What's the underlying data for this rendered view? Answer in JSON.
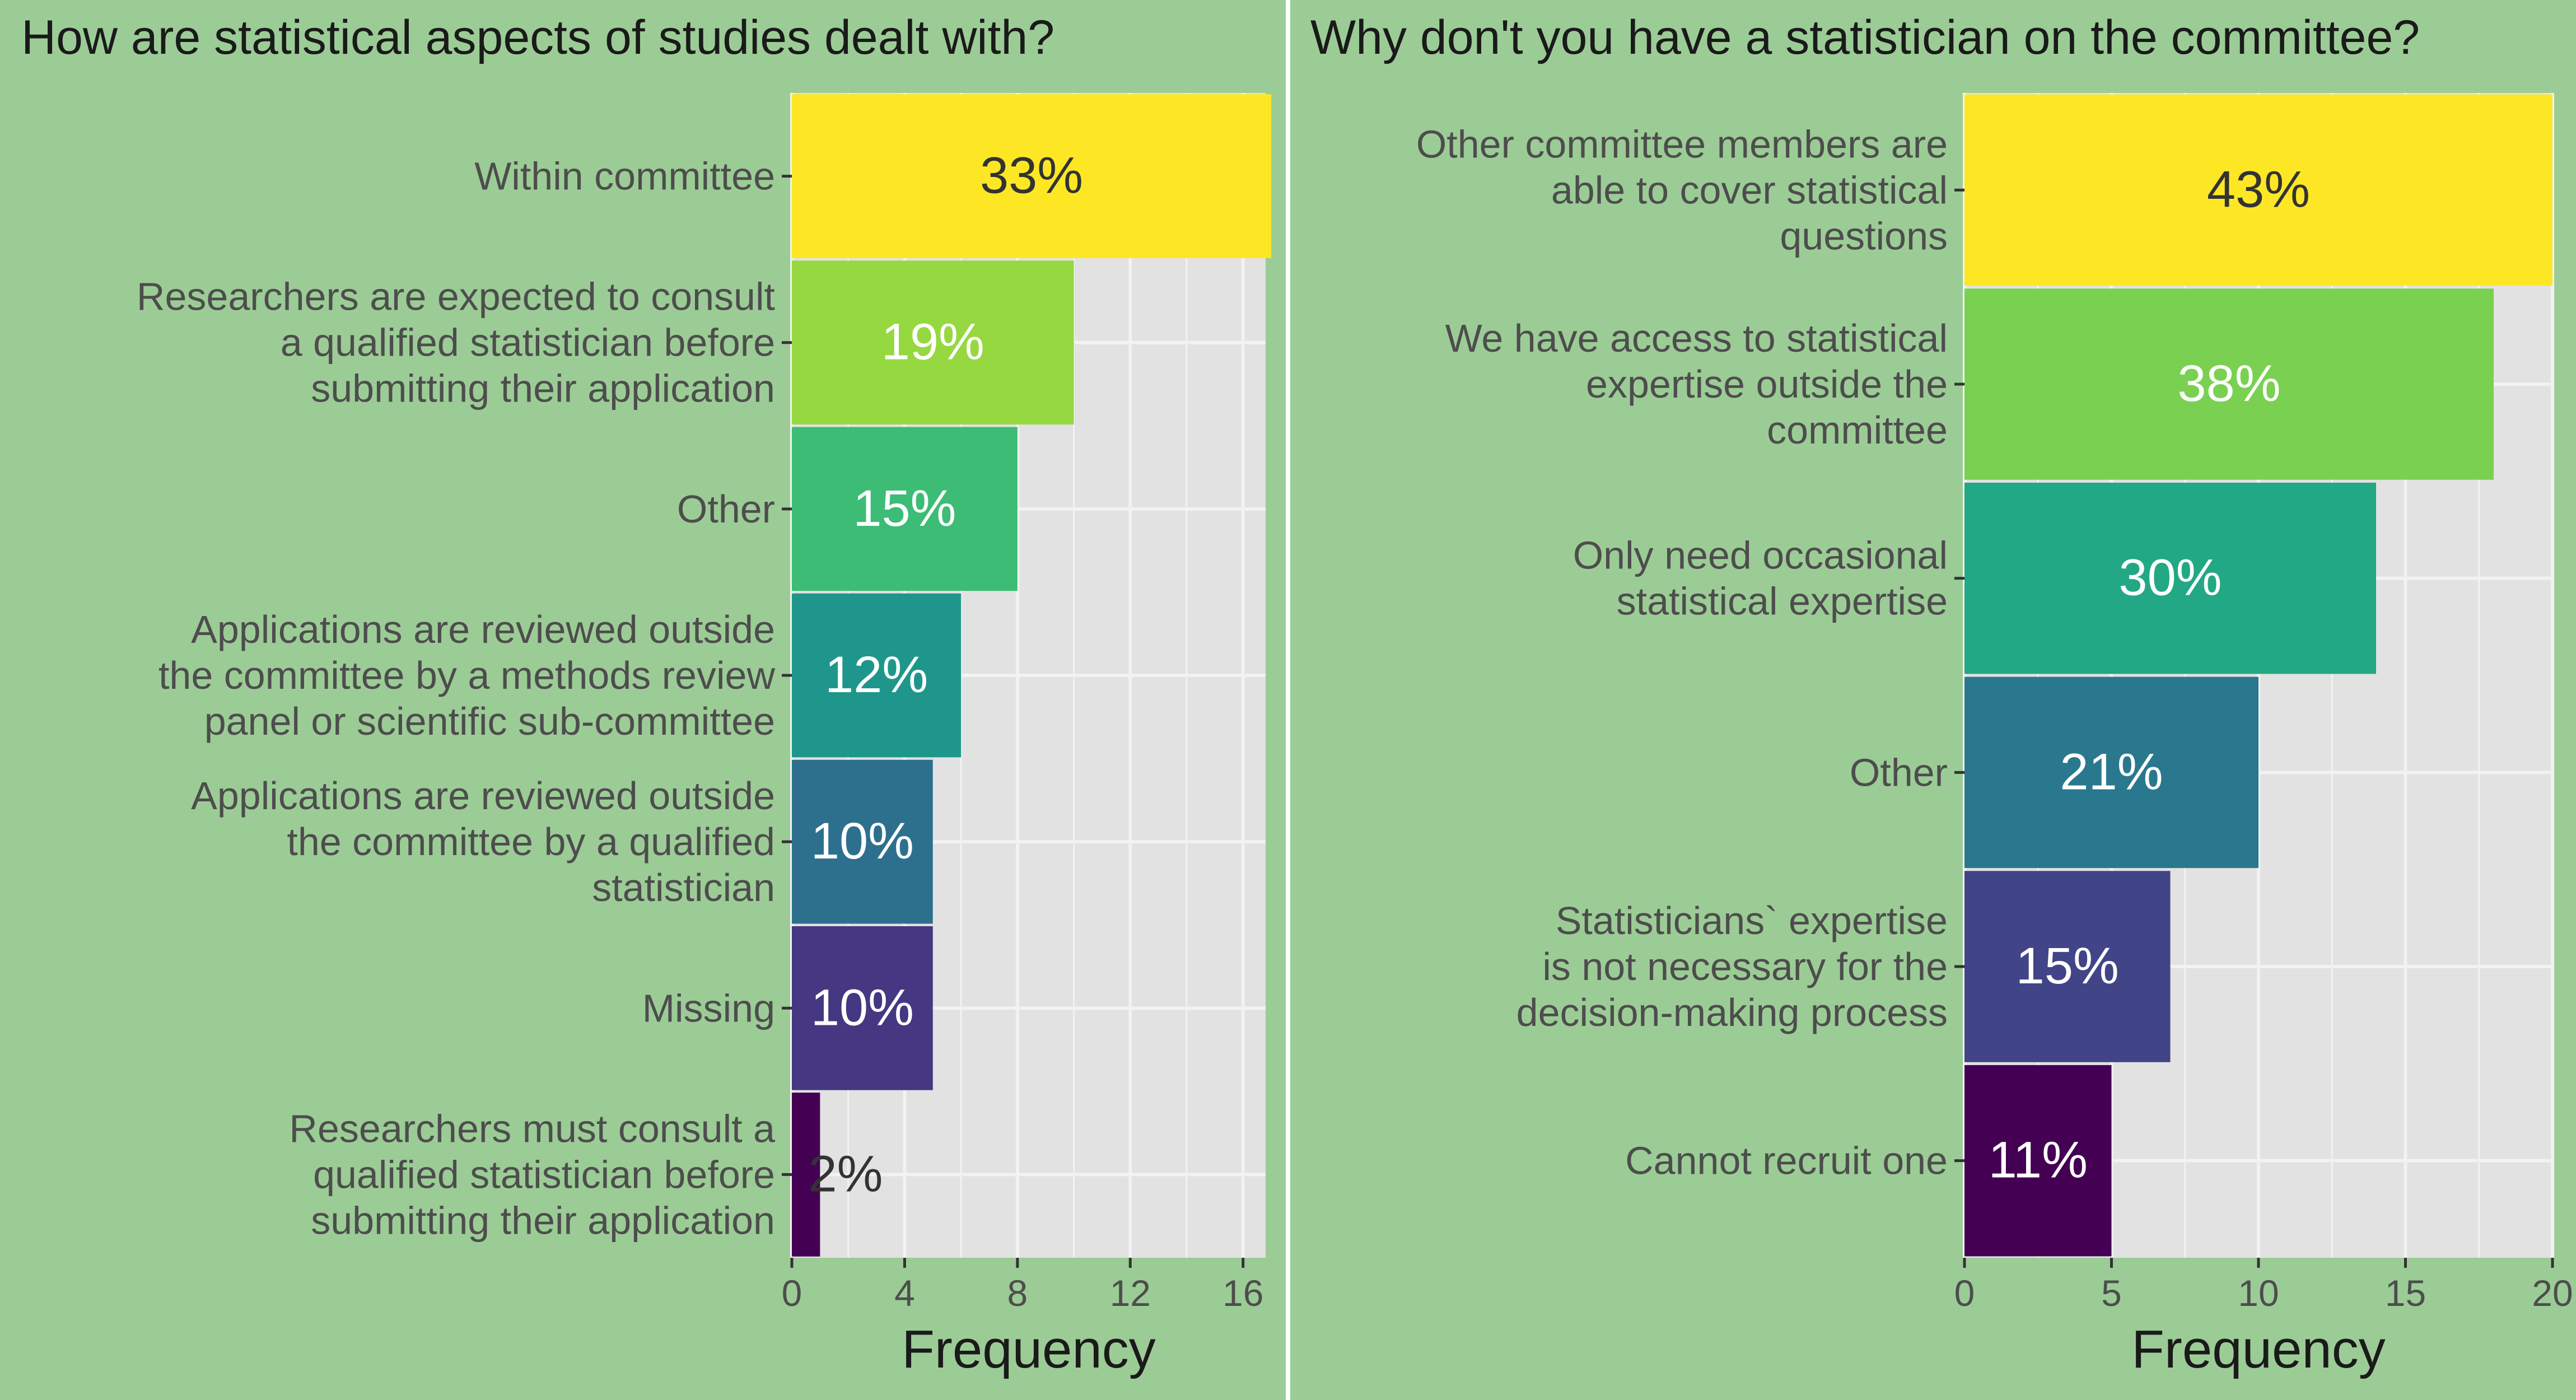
{
  "colors": {
    "panel_background": "#9ccc96",
    "plot_background": "#e2e2e2",
    "gridline": "#f2f2f2",
    "axis_text": "#4d4d4d",
    "title_text": "#1a1a1a",
    "dark_label": "#333333",
    "light_label": "#ffffff"
  },
  "chart_data": [
    {
      "type": "bar",
      "orientation": "horizontal",
      "title": "How are statistical aspects of studies dealt with?",
      "xlabel": "Frequency",
      "ylabel": "",
      "xlim": [
        0,
        16.8
      ],
      "xticks": [
        0,
        4,
        8,
        12,
        16
      ],
      "grid": true,
      "categories": [
        "Within committee",
        "Researchers are expected to consult a qualified statistician before submitting their application",
        "Other",
        "Applications are reviewed outside the committee by a methods review panel or scientific sub-committee",
        "Applications are reviewed outside the committee by a qualified statistician",
        "Missing",
        "Researchers must consult a qualified statistician before submitting their application"
      ],
      "category_lines": [
        [
          "Within committee"
        ],
        [
          "Researchers are expected to consult",
          "a qualified statistician before",
          "submitting their application"
        ],
        [
          "Other"
        ],
        [
          "Applications are reviewed outside",
          "the committee by a methods review",
          "panel or scientific sub-committee"
        ],
        [
          "Applications are reviewed outside",
          "the committee by a qualified",
          "statistician"
        ],
        [
          "Missing"
        ],
        [
          "Researchers must consult a",
          "qualified statistician before",
          "submitting their application"
        ]
      ],
      "values": [
        17,
        10,
        8,
        6,
        5,
        5,
        1
      ],
      "labels": [
        "33%",
        "19%",
        "15%",
        "12%",
        "10%",
        "10%",
        "2%"
      ],
      "bar_colors": [
        "#fde725",
        "#95d840",
        "#3cbc75",
        "#1f968b",
        "#2d708e",
        "#453781",
        "#440154"
      ]
    },
    {
      "type": "bar",
      "orientation": "horizontal",
      "title": "Why don't you have a statistician on the committee?",
      "xlabel": "Frequency",
      "ylabel": "",
      "xlim": [
        0,
        20
      ],
      "xticks": [
        0,
        5,
        10,
        15,
        20
      ],
      "grid": true,
      "categories": [
        "Other committee members are able to cover statistical questions",
        "We have access to statistical expertise outside the committee",
        "Only need occasional statistical expertise",
        "Other",
        "Statisticians` expertise is not necessary for the decision-making process",
        "Cannot recruit one"
      ],
      "category_lines": [
        [
          "Other committee members are",
          "able to cover statistical",
          "questions"
        ],
        [
          "We have access to statistical",
          "expertise outside the",
          "committee"
        ],
        [
          "Only need occasional",
          "statistical expertise"
        ],
        [
          "Other"
        ],
        [
          "Statisticians` expertise",
          "is not necessary for the",
          "decision-making process"
        ],
        [
          "Cannot recruit one"
        ]
      ],
      "values": [
        20,
        18,
        14,
        10,
        7,
        5
      ],
      "labels": [
        "43%",
        "38%",
        "30%",
        "21%",
        "15%",
        "11%"
      ],
      "bar_colors": [
        "#fde725",
        "#7ad151",
        "#22a884",
        "#2a788e",
        "#414487",
        "#440154"
      ]
    }
  ]
}
